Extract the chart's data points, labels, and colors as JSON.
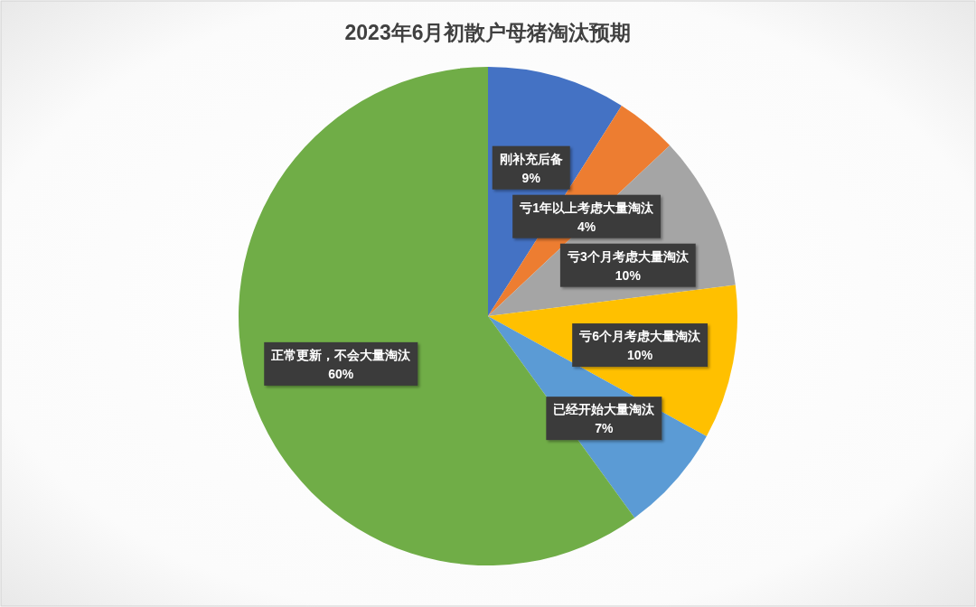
{
  "chart_data": {
    "type": "pie",
    "title": "2023年6月初散户母猪淘汰预期",
    "categories": [
      "刚补充后备",
      "亏1年以上考虑大量淘汰",
      "亏3个月考虑大量淘汰",
      "亏6个月考虑大量淘汰",
      "已经开始大量淘汰",
      "正常更新，不会大量淘汰"
    ],
    "values": [
      9,
      4,
      10,
      10,
      7,
      60
    ],
    "value_labels": [
      "9%",
      "4%",
      "10%",
      "10%",
      "7%",
      "60%"
    ],
    "colors": [
      "#4472c4",
      "#ed7d31",
      "#a5a5a5",
      "#ffc000",
      "#5b9bd5",
      "#70ad47"
    ]
  }
}
